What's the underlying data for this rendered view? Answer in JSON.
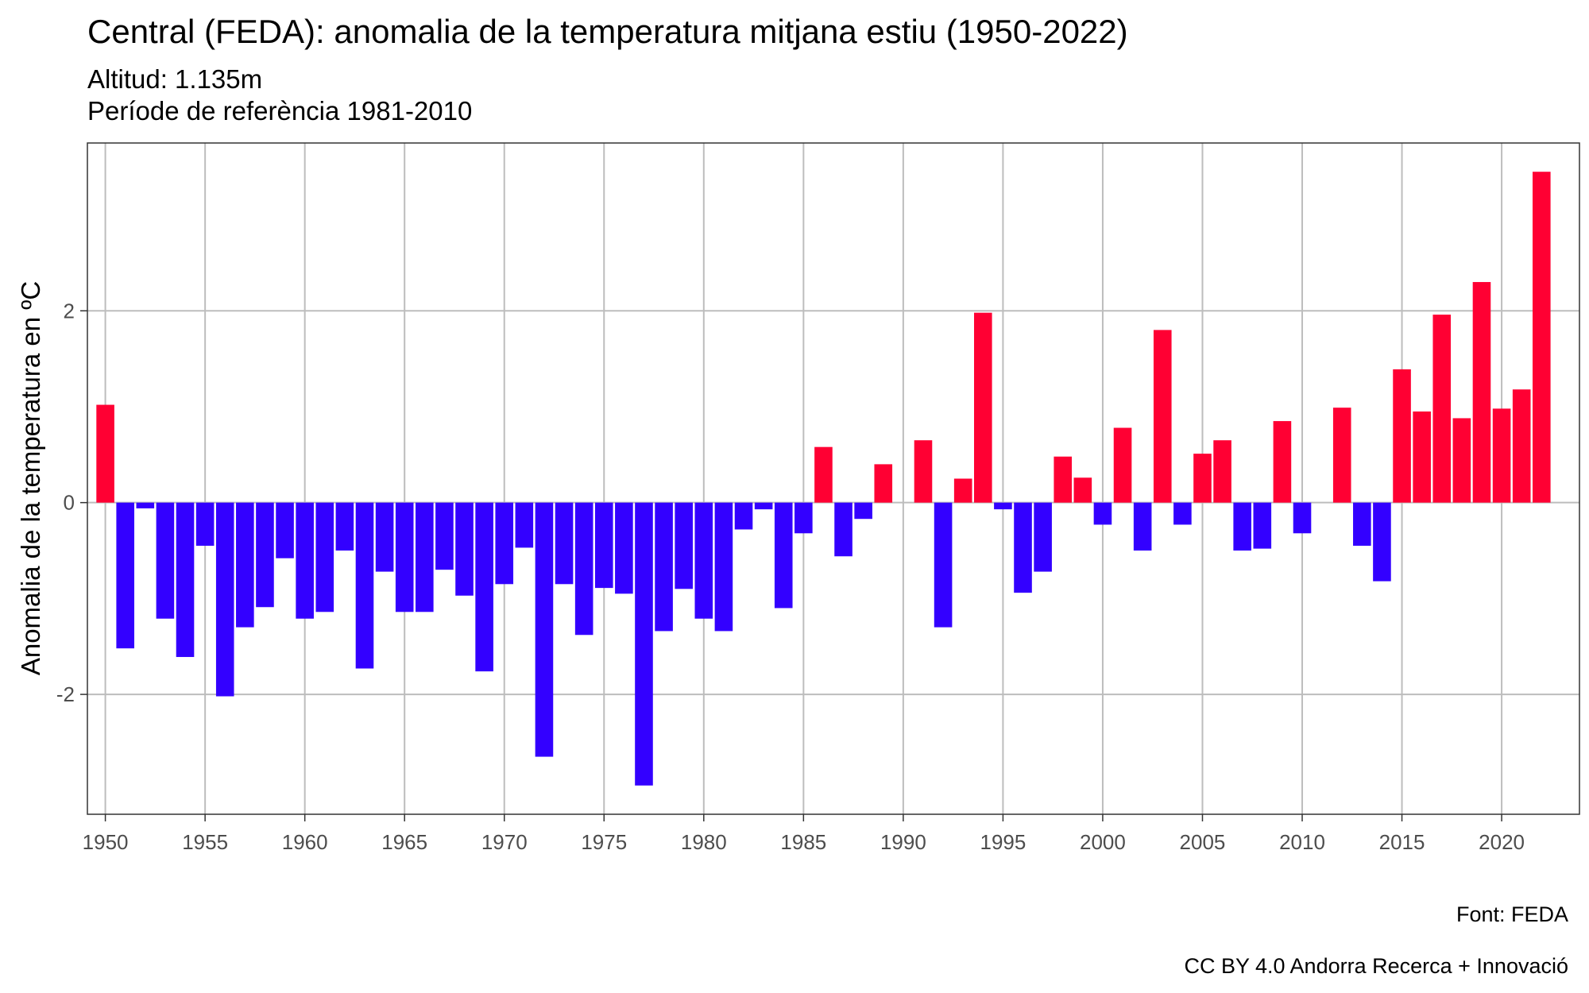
{
  "title": "Central (FEDA): anomalia de la temperatura mitjana estiu (1950-2022)",
  "subtitle_lines": [
    "Altitud: 1.135m",
    "Període de referència 1981-2010"
  ],
  "caption_lines": [
    "Font: FEDA",
    "CC BY 4.0 Andorra Recerca + Innovació"
  ],
  "chart_data": {
    "type": "bar",
    "ylabel": "Anomalia de la temperatura en ºC",
    "xlabel": "",
    "ylim": [
      -3.25,
      3.75
    ],
    "xlim": [
      1949.1,
      2023.9
    ],
    "yticks": [
      -2,
      0,
      2
    ],
    "xticks": [
      1950,
      1955,
      1960,
      1965,
      1970,
      1975,
      1980,
      1985,
      1990,
      1995,
      2000,
      2005,
      2010,
      2015,
      2020
    ],
    "grid": true,
    "colors": {
      "positive": "#ff0033",
      "negative": "#3300ff"
    },
    "x": [
      1950,
      1951,
      1952,
      1953,
      1954,
      1955,
      1956,
      1957,
      1958,
      1959,
      1960,
      1961,
      1962,
      1963,
      1964,
      1965,
      1966,
      1967,
      1968,
      1969,
      1970,
      1971,
      1972,
      1973,
      1974,
      1975,
      1976,
      1977,
      1978,
      1979,
      1980,
      1981,
      1982,
      1983,
      1984,
      1985,
      1986,
      1987,
      1988,
      1989,
      1990,
      1991,
      1992,
      1993,
      1994,
      1995,
      1996,
      1997,
      1998,
      1999,
      2000,
      2001,
      2002,
      2003,
      2004,
      2005,
      2006,
      2007,
      2008,
      2009,
      2010,
      2011,
      2012,
      2013,
      2014,
      2015,
      2016,
      2017,
      2018,
      2019,
      2020,
      2021,
      2022
    ],
    "values": [
      1.02,
      -1.52,
      -0.06,
      -1.21,
      -1.61,
      -0.45,
      -2.02,
      -1.3,
      -1.09,
      -0.58,
      -1.21,
      -1.14,
      -0.5,
      -1.73,
      -0.72,
      -1.14,
      -1.14,
      -0.7,
      -0.97,
      -1.76,
      -0.85,
      -0.47,
      -2.65,
      -0.85,
      -1.38,
      -0.89,
      -0.95,
      -2.95,
      -1.34,
      -0.9,
      -1.21,
      -1.34,
      -0.28,
      -0.07,
      -1.1,
      -0.32,
      0.58,
      -0.56,
      -0.17,
      0.4,
      0.0,
      0.65,
      -1.3,
      0.25,
      1.98,
      -0.07,
      -0.94,
      -0.72,
      0.48,
      0.26,
      -0.23,
      0.78,
      -0.5,
      1.8,
      -0.23,
      0.51,
      0.65,
      -0.5,
      -0.48,
      0.85,
      -0.32,
      0.0,
      0.99,
      -0.45,
      -0.82,
      1.39,
      0.95,
      1.96,
      0.88,
      2.3,
      0.98,
      1.18,
      3.45
    ]
  }
}
